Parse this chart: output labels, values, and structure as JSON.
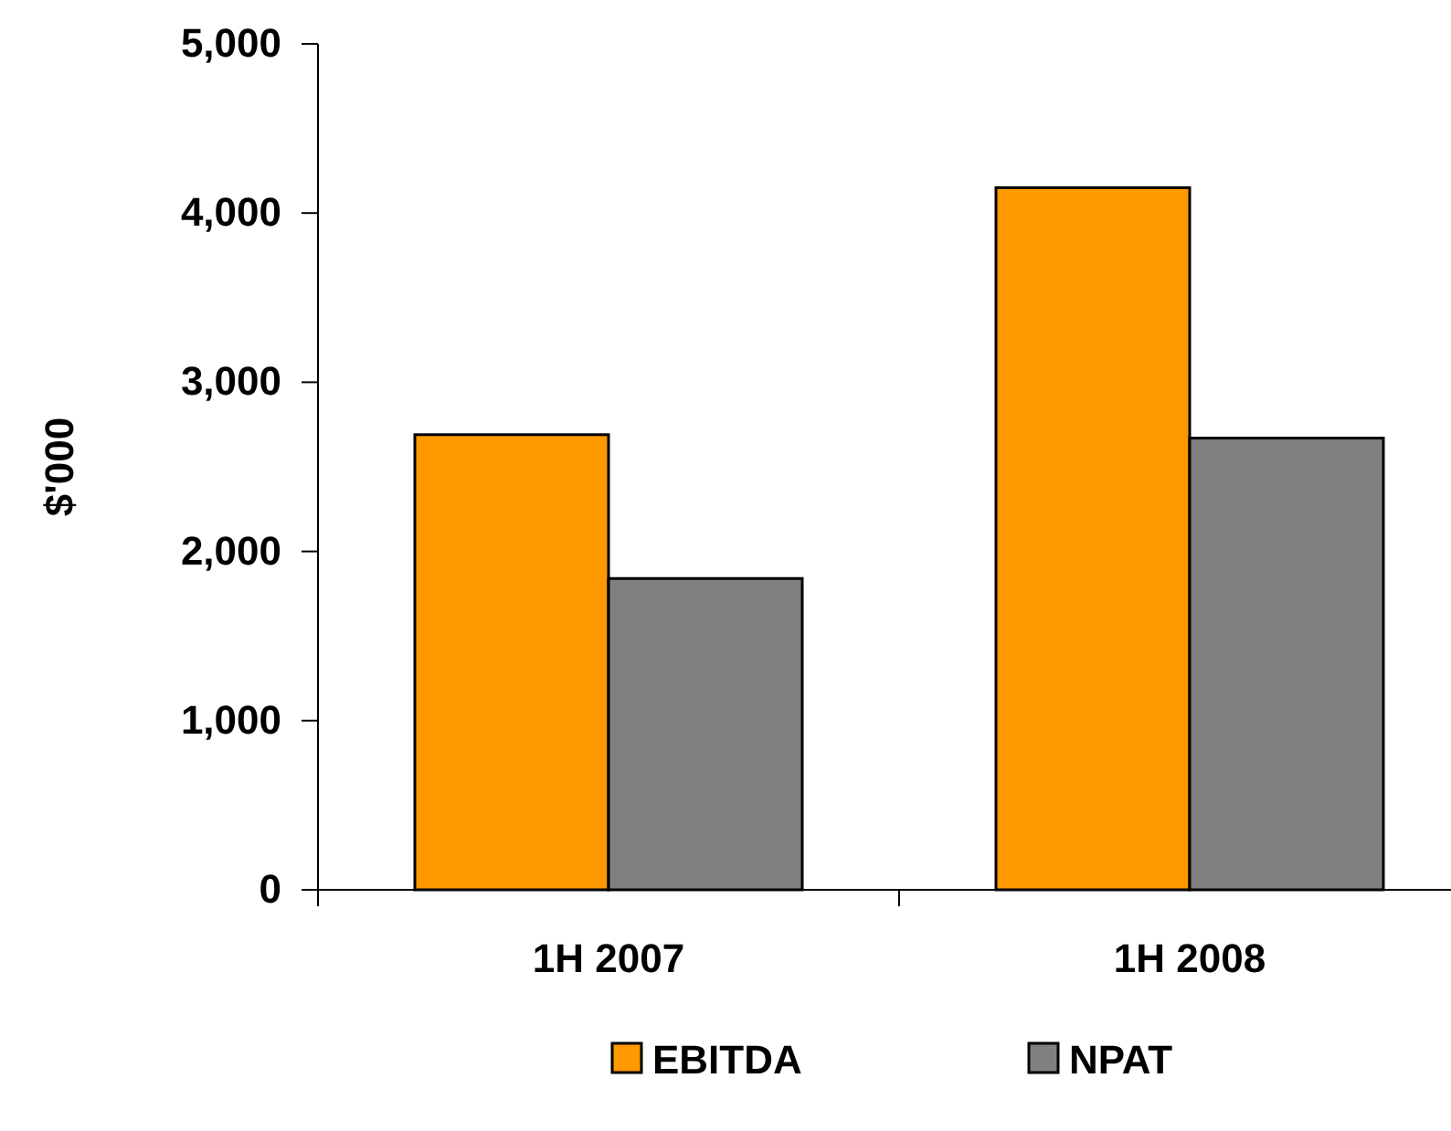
{
  "chart_data": {
    "type": "bar",
    "categories": [
      "1H 2007",
      "1H 2008"
    ],
    "ylabel": "$'000",
    "series": [
      {
        "name": "EBITDA",
        "color": "#ff9900",
        "values": [
          2690,
          4150
        ]
      },
      {
        "name": "NPAT",
        "color": "#808080",
        "values": [
          1840,
          2670
        ]
      }
    ],
    "ylim": [
      0,
      5000
    ],
    "yticks": [
      {
        "value": 0,
        "label": "0"
      },
      {
        "value": 1000,
        "label": "1,000"
      },
      {
        "value": 2000,
        "label": "2,000"
      },
      {
        "value": 3000,
        "label": "3,000"
      },
      {
        "value": 4000,
        "label": "4,000"
      },
      {
        "value": 5000,
        "label": "5,000"
      }
    ],
    "grid": false,
    "legend": "bottom"
  }
}
